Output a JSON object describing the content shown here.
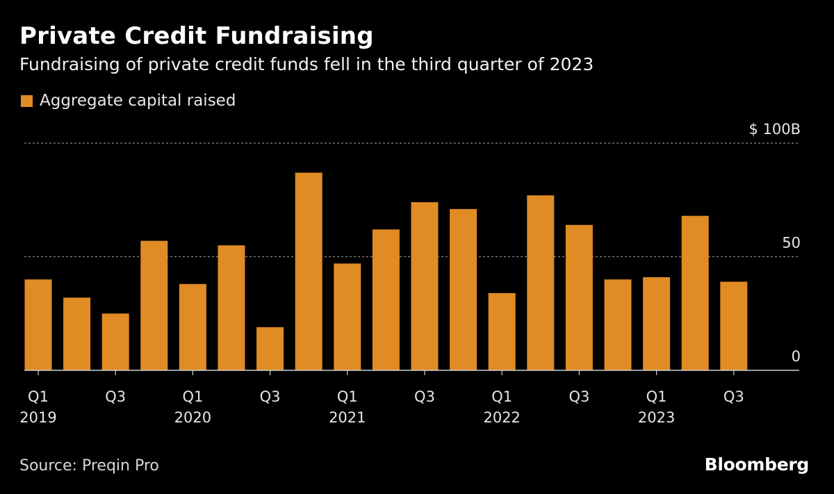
{
  "chart_data": {
    "type": "bar",
    "title": "Private Credit Fundraising",
    "subtitle": "Fundraising of private credit funds fell in the third quarter of 2023",
    "series": [
      {
        "name": "Aggregate capital raised",
        "color": "#e08b24",
        "values": [
          40,
          32,
          25,
          57,
          38,
          55,
          19,
          87,
          47,
          62,
          74,
          71,
          34,
          77,
          64,
          40,
          41,
          68,
          39
        ]
      }
    ],
    "categories": [
      "Q1 2019",
      "Q2 2019",
      "Q3 2019",
      "Q4 2019",
      "Q1 2020",
      "Q2 2020",
      "Q3 2020",
      "Q4 2020",
      "Q1 2021",
      "Q2 2021",
      "Q3 2021",
      "Q4 2021",
      "Q1 2022",
      "Q2 2022",
      "Q3 2022",
      "Q4 2022",
      "Q1 2023",
      "Q2 2023",
      "Q3 2023"
    ],
    "x_tick_labels": [
      {
        "index": 0,
        "line1": "Q1",
        "line2": "2019"
      },
      {
        "index": 2,
        "line1": "Q3",
        "line2": ""
      },
      {
        "index": 4,
        "line1": "Q1",
        "line2": "2020"
      },
      {
        "index": 6,
        "line1": "Q3",
        "line2": ""
      },
      {
        "index": 8,
        "line1": "Q1",
        "line2": "2021"
      },
      {
        "index": 10,
        "line1": "Q3",
        "line2": ""
      },
      {
        "index": 12,
        "line1": "Q1",
        "line2": "2022"
      },
      {
        "index": 14,
        "line1": "Q3",
        "line2": ""
      },
      {
        "index": 16,
        "line1": "Q1",
        "line2": "2023"
      },
      {
        "index": 18,
        "line1": "Q3",
        "line2": ""
      }
    ],
    "y_ticks": [
      {
        "value": 0,
        "label": "0"
      },
      {
        "value": 50,
        "label": "50"
      },
      {
        "value": 100,
        "label": "$ 100B"
      }
    ],
    "ylim": [
      0,
      100
    ],
    "grid": true,
    "legend": "top-left",
    "xlabel": "",
    "ylabel": ""
  },
  "legend_label": "Aggregate capital raised",
  "source": "Source: Preqin Pro",
  "brand": "Bloomberg",
  "colors": {
    "background": "#000000",
    "bar": "#e08b24",
    "grid": "#8a8a8a",
    "axis": "#cfcfcf"
  }
}
